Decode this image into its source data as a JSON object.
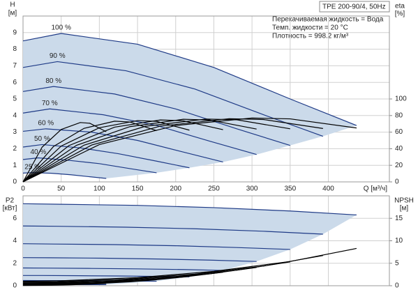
{
  "chart_data": [
    {
      "type": "line",
      "title": "TPE 200-90/4, 50Hz",
      "notes": [
        "Перекачиваемая жидкость = Вода",
        "Темп. жидкости = 20 °C",
        "Плотность = 998.2 кг/м³"
      ],
      "ylabel": "H",
      "yunit": "[м]",
      "y2label": "eta",
      "y2unit": "[%]",
      "xlabel": "Q [м³/ч]",
      "xlim": [
        0,
        480
      ],
      "xticks": [
        0,
        50,
        100,
        150,
        200,
        250,
        300,
        350,
        400
      ],
      "ylim": [
        0,
        10
      ],
      "yticks": [
        0,
        1,
        2,
        3,
        4,
        5,
        6,
        7,
        8,
        9
      ],
      "y2lim": [
        0,
        200
      ],
      "y2ticks": [
        0,
        20,
        40,
        60,
        80,
        100
      ],
      "grid": true,
      "area_color": "#cbdaea",
      "series": [
        {
          "name": "100 %",
          "color": "#1e3a86",
          "x": [
            0,
            50,
            150,
            250,
            350,
            437
          ],
          "values": [
            8.5,
            8.95,
            8.3,
            6.9,
            5.0,
            3.4
          ]
        },
        {
          "name": "90 %",
          "color": "#1e3a86",
          "x": [
            0,
            45,
            135,
            225,
            315,
            393
          ],
          "values": [
            6.9,
            7.25,
            6.7,
            5.6,
            4.05,
            2.75
          ]
        },
        {
          "name": "80 %",
          "color": "#1e3a86",
          "x": [
            0,
            40,
            120,
            200,
            280,
            350
          ],
          "values": [
            5.45,
            5.75,
            5.3,
            4.4,
            3.2,
            2.2
          ]
        },
        {
          "name": "70 %",
          "color": "#1e3a86",
          "x": [
            0,
            35,
            105,
            175,
            245,
            306
          ],
          "values": [
            4.15,
            4.4,
            4.05,
            3.4,
            2.45,
            1.65
          ]
        },
        {
          "name": "60 %",
          "color": "#1e3a86",
          "x": [
            0,
            30,
            90,
            150,
            210,
            262
          ],
          "values": [
            3.05,
            3.2,
            3.0,
            2.5,
            1.8,
            1.2
          ]
        },
        {
          "name": "50 %",
          "color": "#1e3a86",
          "x": [
            0,
            25,
            75,
            125,
            175,
            218
          ],
          "values": [
            2.1,
            2.25,
            2.05,
            1.7,
            1.25,
            0.85
          ]
        },
        {
          "name": "40 %",
          "color": "#1e3a86",
          "x": [
            0,
            20,
            60,
            100,
            140,
            175
          ],
          "values": [
            1.35,
            1.45,
            1.3,
            1.1,
            0.8,
            0.55
          ]
        },
        {
          "name": "25 %",
          "color": "#1e3a86",
          "x": [
            0,
            12.5,
            37.5,
            62.5,
            87.5,
            109
          ],
          "values": [
            0.53,
            0.56,
            0.52,
            0.43,
            0.31,
            0.21
          ]
        },
        {
          "axis": "y2",
          "color": "#000000",
          "x": [
            0,
            100,
            200,
            300,
            350,
            437
          ],
          "values": [
            0,
            45,
            68,
            77,
            76,
            65
          ]
        },
        {
          "axis": "y2",
          "color": "#000000",
          "x": [
            0,
            90,
            180,
            270,
            315,
            393
          ],
          "values": [
            0,
            44.5,
            67.3,
            76.2,
            75.2,
            64.4
          ]
        },
        {
          "axis": "y2",
          "color": "#000000",
          "x": [
            0,
            80,
            160,
            240,
            280,
            350
          ],
          "values": [
            0,
            44.3,
            67,
            75.8,
            74.9,
            64
          ]
        },
        {
          "axis": "y2",
          "color": "#000000",
          "x": [
            0,
            70,
            140,
            210,
            245,
            306
          ],
          "values": [
            0,
            44.1,
            66.6,
            75.5,
            74.5,
            63.7
          ]
        },
        {
          "axis": "y2",
          "color": "#000000",
          "x": [
            0,
            60,
            120,
            180,
            210,
            262
          ],
          "values": [
            0,
            43.7,
            66,
            74.7,
            73.7,
            63
          ]
        },
        {
          "axis": "y2",
          "color": "#000000",
          "x": [
            0,
            50,
            100,
            150,
            175,
            218
          ],
          "values": [
            0,
            43.2,
            65.3,
            73.9,
            73,
            62.4
          ]
        },
        {
          "axis": "y2",
          "color": "#000000",
          "x": [
            0,
            40,
            80,
            120,
            140,
            175
          ],
          "values": [
            0,
            42.8,
            64.6,
            73.2,
            72.2,
            61.8
          ]
        },
        {
          "axis": "y2",
          "color": "#000000",
          "x": [
            0,
            25,
            50,
            75,
            87.5,
            109
          ],
          "values": [
            0,
            41.9,
            63.2,
            71.6,
            70.7,
            60.5
          ]
        }
      ]
    },
    {
      "type": "line",
      "ylabel": "P2",
      "yunit": "[кВт]",
      "y2label": "NPSH",
      "y2unit": "[м]",
      "xlim": [
        0,
        480
      ],
      "ylim": [
        0,
        8
      ],
      "yticks": [
        0,
        2,
        4,
        6
      ],
      "y2lim": [
        0,
        20
      ],
      "y2ticks": [
        0,
        5,
        10,
        15
      ],
      "grid": true,
      "area_color": "#cbdaea",
      "series": [
        {
          "color": "#1e3a86",
          "x": [
            0,
            50,
            150,
            250,
            350,
            437
          ],
          "values": [
            7.3,
            7.25,
            7.15,
            6.95,
            6.65,
            6.3
          ]
        },
        {
          "color": "#1e3a86",
          "x": [
            0,
            45,
            135,
            225,
            315,
            393
          ],
          "values": [
            5.32,
            5.29,
            5.21,
            5.07,
            4.85,
            4.59
          ]
        },
        {
          "color": "#1e3a86",
          "x": [
            0,
            40,
            120,
            200,
            280,
            350
          ],
          "values": [
            3.74,
            3.71,
            3.66,
            3.56,
            3.4,
            3.23
          ]
        },
        {
          "color": "#1e3a86",
          "x": [
            0,
            35,
            105,
            175,
            245,
            306
          ],
          "values": [
            2.5,
            2.49,
            2.45,
            2.38,
            2.28,
            2.16
          ]
        },
        {
          "color": "#1e3a86",
          "x": [
            0,
            30,
            90,
            150,
            210,
            262
          ],
          "values": [
            1.58,
            1.57,
            1.54,
            1.5,
            1.44,
            1.36
          ]
        },
        {
          "color": "#1e3a86",
          "x": [
            0,
            25,
            75,
            125,
            175,
            218
          ],
          "values": [
            0.91,
            0.91,
            0.89,
            0.87,
            0.83,
            0.79
          ]
        },
        {
          "color": "#1e3a86",
          "x": [
            0,
            20,
            60,
            100,
            140,
            175
          ],
          "values": [
            0.47,
            0.46,
            0.46,
            0.44,
            0.43,
            0.4
          ]
        },
        {
          "color": "#1e3a86",
          "x": [
            0,
            12.5,
            37.5,
            62.5,
            87.5,
            109
          ],
          "values": [
            0.11,
            0.11,
            0.11,
            0.11,
            0.1,
            0.1
          ]
        },
        {
          "axis": "y2",
          "color": "#000000",
          "x": [
            0,
            50,
            150,
            250,
            350,
            437
          ],
          "values": [
            1.0,
            1.1,
            1.8,
            3.2,
            5.4,
            8.3
          ]
        },
        {
          "axis": "y2",
          "color": "#000000",
          "x": [
            0,
            45,
            135,
            225,
            315,
            393
          ],
          "values": [
            0.81,
            0.89,
            1.46,
            2.59,
            4.37,
            6.72
          ]
        },
        {
          "axis": "y2",
          "color": "#000000",
          "x": [
            0,
            40,
            120,
            200,
            280,
            350
          ],
          "values": [
            0.64,
            0.7,
            1.15,
            2.05,
            3.46,
            5.31
          ]
        },
        {
          "axis": "y2",
          "color": "#000000",
          "x": [
            0,
            35,
            105,
            175,
            245,
            306
          ],
          "values": [
            0.49,
            0.54,
            0.88,
            1.57,
            2.65,
            4.07
          ]
        },
        {
          "axis": "y2",
          "color": "#000000",
          "x": [
            0,
            30,
            90,
            150,
            210,
            262
          ],
          "values": [
            0.36,
            0.4,
            0.65,
            1.15,
            1.94,
            2.99
          ]
        },
        {
          "axis": "y2",
          "color": "#000000",
          "x": [
            0,
            25,
            75,
            125,
            175,
            218
          ],
          "values": [
            0.25,
            0.28,
            0.45,
            0.8,
            1.35,
            2.08
          ]
        },
        {
          "axis": "y2",
          "color": "#000000",
          "x": [
            0,
            20,
            60,
            100,
            140,
            175
          ],
          "values": [
            0.16,
            0.18,
            0.29,
            0.51,
            0.86,
            1.33
          ]
        },
        {
          "axis": "y2",
          "color": "#000000",
          "x": [
            0,
            12.5,
            37.5,
            62.5,
            87.5,
            109
          ],
          "values": [
            0.06,
            0.07,
            0.11,
            0.2,
            0.34,
            0.52
          ]
        }
      ]
    }
  ]
}
